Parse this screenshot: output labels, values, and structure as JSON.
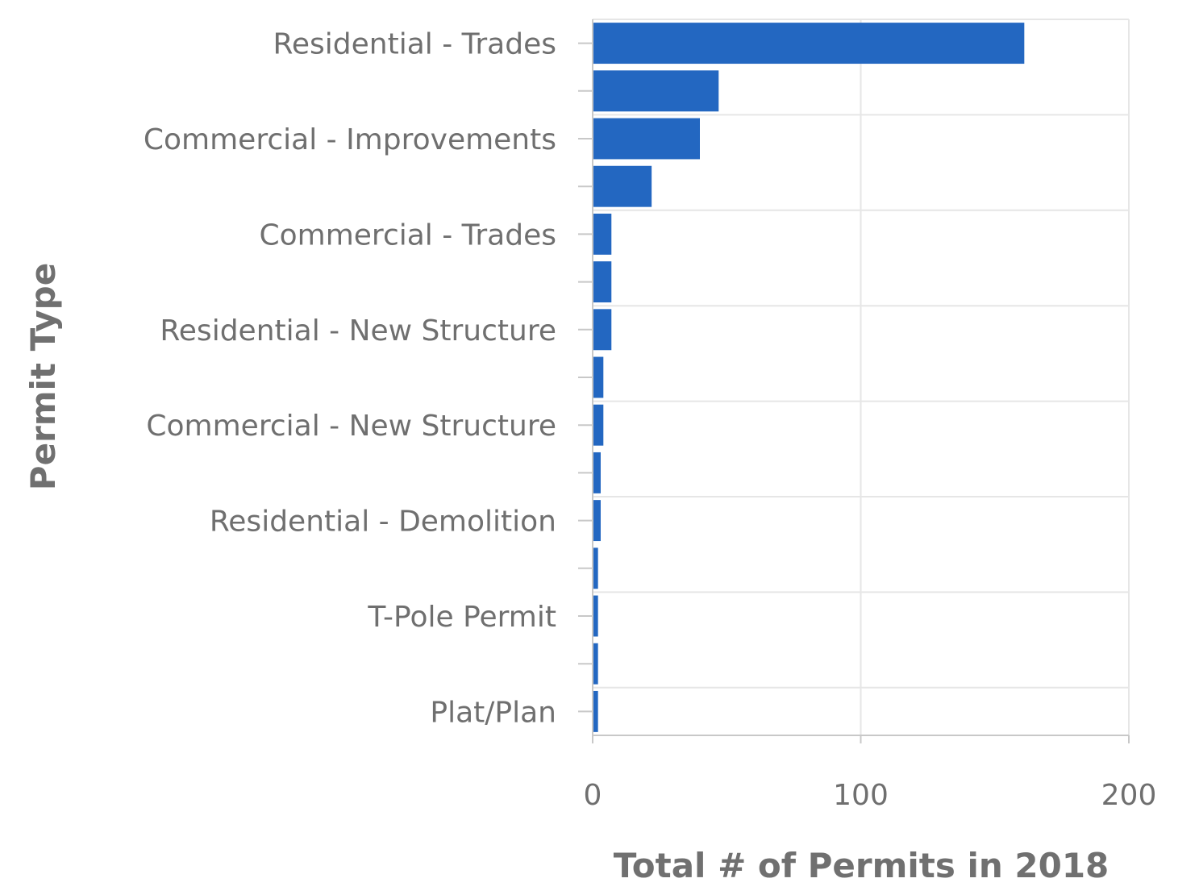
{
  "chart_data": {
    "type": "bar",
    "orientation": "horizontal",
    "title": "",
    "xlabel": "Total # of Permits in 2018",
    "ylabel": "Permit Type",
    "categories": [
      "Residential - Trades",
      "",
      "Commercial - Improvements",
      "",
      "Commercial - Trades",
      "",
      "Residential - New Structure",
      "",
      "Commercial - New Structure",
      "",
      "Residential - Demolition",
      "",
      "T-Pole Permit",
      "",
      "Plat/Plan"
    ],
    "values": [
      161,
      47,
      40,
      22,
      7,
      7,
      7,
      4,
      4,
      3,
      3,
      2,
      2,
      2,
      2
    ],
    "xlim": [
      0,
      200
    ],
    "xticks": [
      "0",
      "100",
      "200"
    ],
    "grid": true,
    "legend": "none",
    "bar_color": "#2367c1"
  }
}
